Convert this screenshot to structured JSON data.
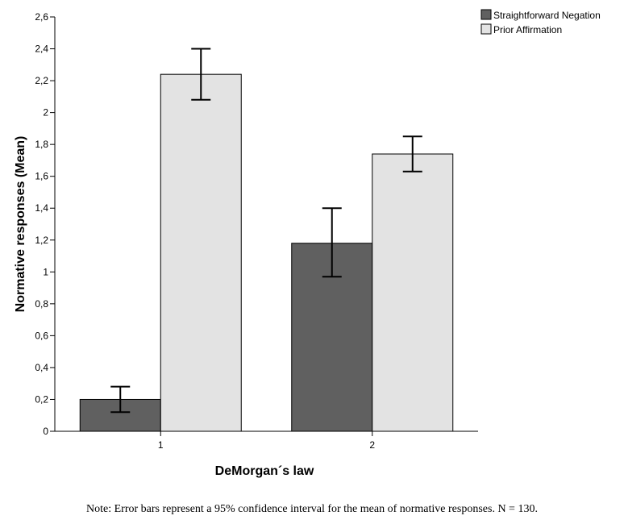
{
  "chart_data": {
    "type": "bar",
    "categories": [
      "1",
      "2"
    ],
    "series": [
      {
        "name": "Straightforward Negation",
        "color": "#606060",
        "values": [
          0.2,
          1.18
        ],
        "ci_low": [
          0.12,
          0.97
        ],
        "ci_high": [
          0.28,
          1.4
        ]
      },
      {
        "name": "Prior Affirmation",
        "color": "#e3e3e3",
        "values": [
          2.24,
          1.74
        ],
        "ci_low": [
          2.08,
          1.63
        ],
        "ci_high": [
          2.4,
          1.85
        ]
      }
    ],
    "xlabel": "DeMorgan´s law",
    "ylabel": "Normative responses (Mean)",
    "ylim": [
      0,
      2.6
    ],
    "yticks": [
      0,
      0.2,
      0.4,
      0.6,
      0.8,
      1,
      1.2,
      1.4,
      1.6,
      1.8,
      2,
      2.2,
      2.4,
      2.6
    ],
    "ytick_labels": [
      "0",
      "0,2",
      "0,4",
      "0,6",
      "0,8",
      "1",
      "1,2",
      "1,4",
      "1,6",
      "1,8",
      "2",
      "2,2",
      "2,4",
      "2,6"
    ],
    "grid": false,
    "legend_position": "top-right"
  },
  "note": "Note: Error bars represent a 95% confidence interval for the mean of normative responses. N = 130."
}
